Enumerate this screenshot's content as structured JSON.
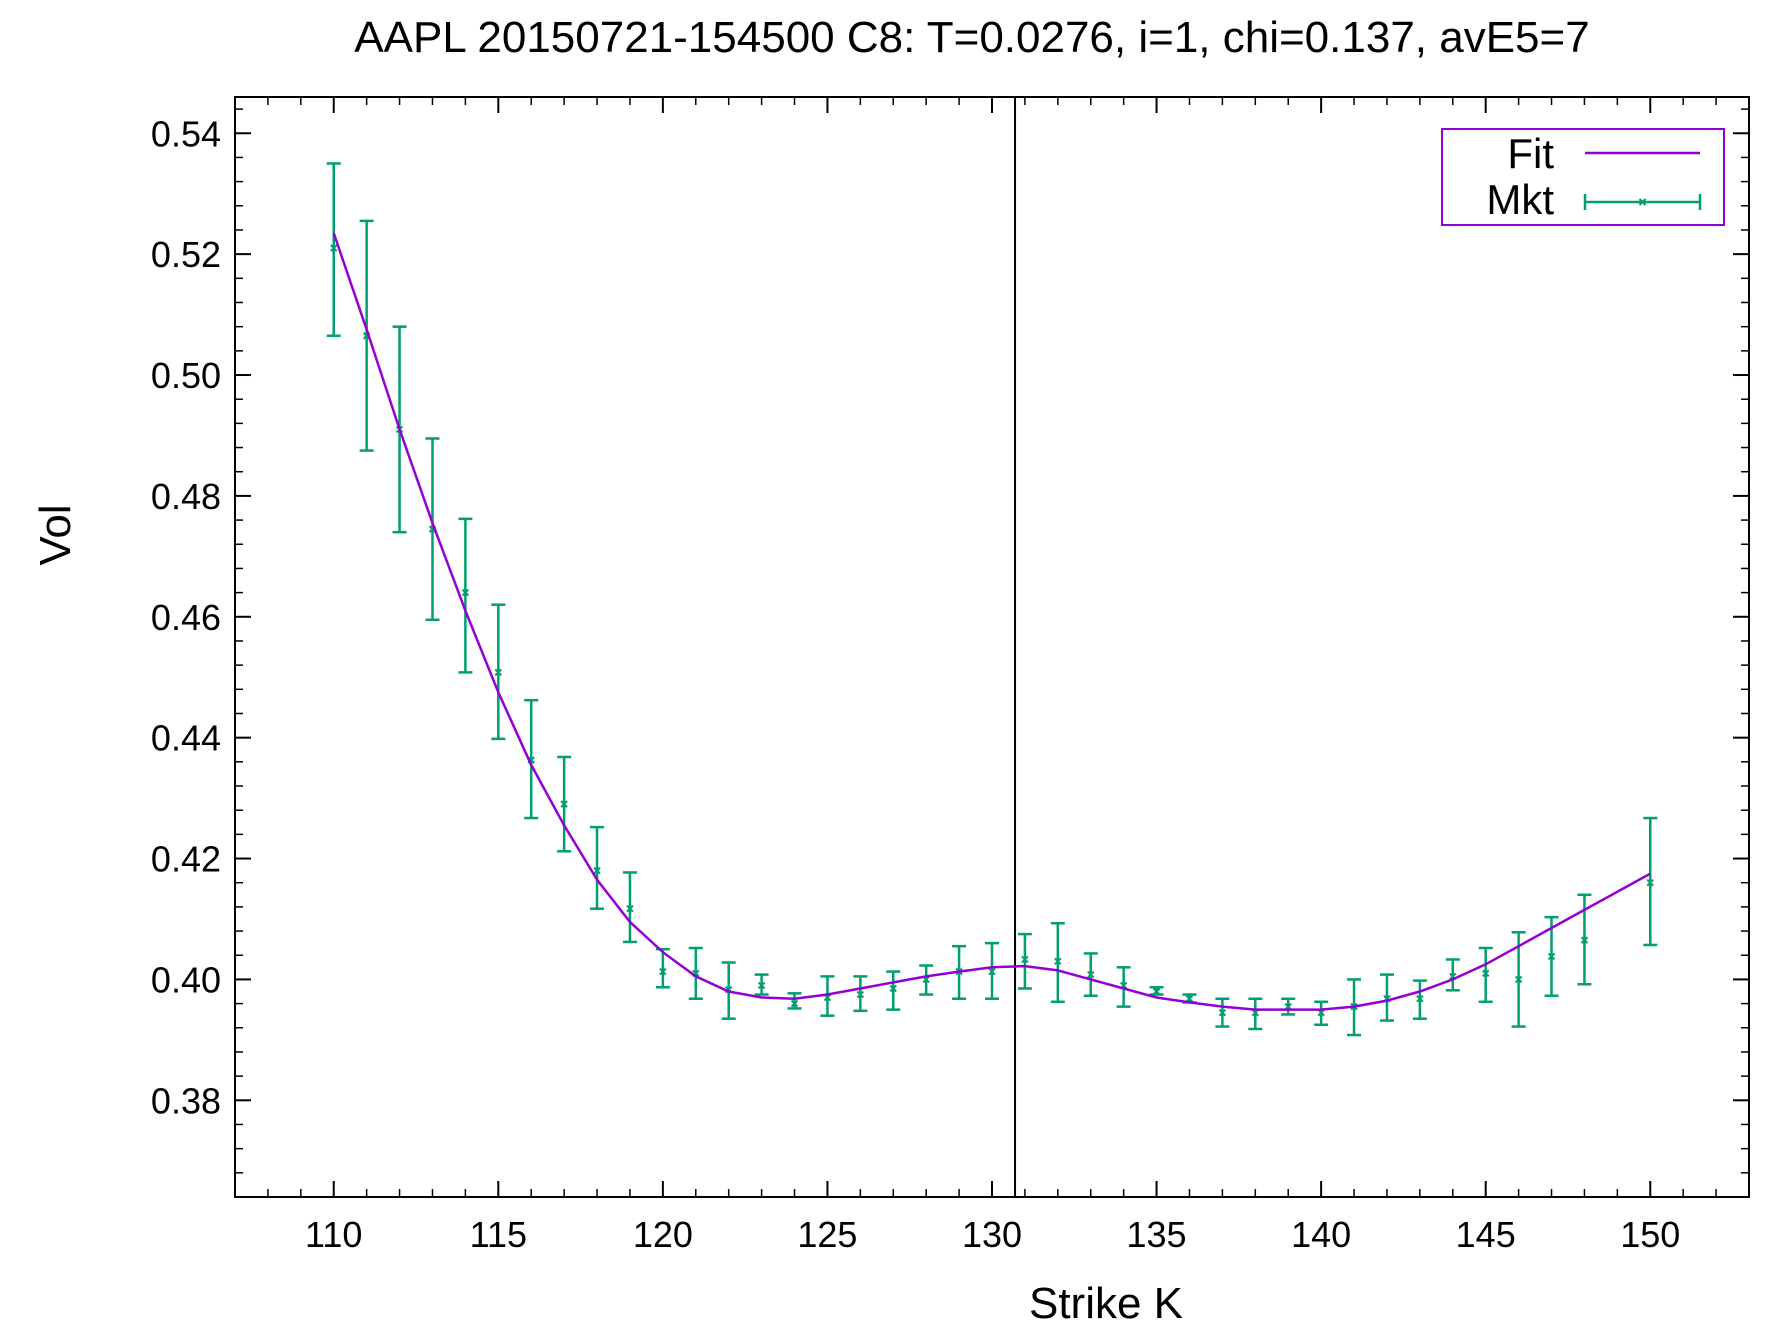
{
  "chart_data": {
    "type": "line",
    "title": "AAPL 20150721-154500  C8:  T=0.0276, i=1, chi=0.137, avE5=7",
    "xlabel": "Strike K",
    "ylabel": "Vol",
    "xlim": [
      107,
      153
    ],
    "ylim": [
      0.364,
      0.546
    ],
    "xticks": [
      110,
      115,
      120,
      125,
      130,
      135,
      140,
      145,
      150
    ],
    "xtick_labels": [
      "110",
      "115",
      "120",
      "125",
      "130",
      "135",
      "140",
      "145",
      "150"
    ],
    "yticks": [
      0.38,
      0.4,
      0.42,
      0.44,
      0.46,
      0.48,
      0.5,
      0.52,
      0.54
    ],
    "ytick_labels": [
      "0.38",
      "0.40",
      "0.42",
      "0.44",
      "0.46",
      "0.48",
      "0.50",
      "0.52",
      "0.54"
    ],
    "vertical_line_x": 130.7,
    "grid": false,
    "legend_position": "top-right",
    "colors": {
      "fit": "#9400D3",
      "mkt": "#009E73",
      "frame": "#000000"
    },
    "series": [
      {
        "name": "Fit",
        "kind": "line",
        "x": [
          110,
          111,
          112,
          113,
          114,
          115,
          116,
          117,
          118,
          119,
          120,
          121,
          122,
          123,
          124,
          125,
          126,
          127,
          128,
          129,
          130,
          131,
          132,
          133,
          134,
          135,
          136,
          137,
          138,
          139,
          140,
          141,
          142,
          143,
          144,
          145,
          146,
          147,
          148,
          149,
          150
        ],
        "y": [
          0.5235,
          0.5075,
          0.491,
          0.4755,
          0.461,
          0.4475,
          0.4355,
          0.4255,
          0.4165,
          0.4095,
          0.4045,
          0.4005,
          0.398,
          0.397,
          0.3968,
          0.3975,
          0.3985,
          0.3995,
          0.4005,
          0.4013,
          0.402,
          0.4022,
          0.4015,
          0.4,
          0.3985,
          0.397,
          0.3962,
          0.3955,
          0.395,
          0.395,
          0.395,
          0.3955,
          0.3965,
          0.398,
          0.4,
          0.4025,
          0.4055,
          0.4085,
          0.4115,
          0.4145,
          0.4175
        ]
      },
      {
        "name": "Mkt",
        "kind": "errorbar",
        "points": [
          {
            "x": 110,
            "y": 0.521,
            "lo": 0.5065,
            "hi": 0.535
          },
          {
            "x": 111,
            "y": 0.5065,
            "lo": 0.4875,
            "hi": 0.5255
          },
          {
            "x": 112,
            "y": 0.491,
            "lo": 0.474,
            "hi": 0.508
          },
          {
            "x": 113,
            "y": 0.4745,
            "lo": 0.4595,
            "hi": 0.4895
          },
          {
            "x": 114,
            "y": 0.464,
            "lo": 0.4508,
            "hi": 0.4762
          },
          {
            "x": 115,
            "y": 0.4508,
            "lo": 0.4398,
            "hi": 0.462
          },
          {
            "x": 116,
            "y": 0.4363,
            "lo": 0.4267,
            "hi": 0.4462
          },
          {
            "x": 117,
            "y": 0.429,
            "lo": 0.4212,
            "hi": 0.4368
          },
          {
            "x": 118,
            "y": 0.418,
            "lo": 0.4117,
            "hi": 0.4252
          },
          {
            "x": 119,
            "y": 0.4117,
            "lo": 0.4062,
            "hi": 0.4177
          },
          {
            "x": 120,
            "y": 0.4013,
            "lo": 0.3987,
            "hi": 0.405
          },
          {
            "x": 121,
            "y": 0.401,
            "lo": 0.3968,
            "hi": 0.4052
          },
          {
            "x": 122,
            "y": 0.3983,
            "lo": 0.3935,
            "hi": 0.4028
          },
          {
            "x": 123,
            "y": 0.399,
            "lo": 0.3975,
            "hi": 0.4008
          },
          {
            "x": 124,
            "y": 0.396,
            "lo": 0.3952,
            "hi": 0.3977
          },
          {
            "x": 125,
            "y": 0.397,
            "lo": 0.394,
            "hi": 0.4005
          },
          {
            "x": 126,
            "y": 0.3975,
            "lo": 0.3948,
            "hi": 0.4005
          },
          {
            "x": 127,
            "y": 0.3985,
            "lo": 0.395,
            "hi": 0.4013
          },
          {
            "x": 128,
            "y": 0.4,
            "lo": 0.3975,
            "hi": 0.4023
          },
          {
            "x": 129,
            "y": 0.4013,
            "lo": 0.3968,
            "hi": 0.4055
          },
          {
            "x": 130,
            "y": 0.4013,
            "lo": 0.3968,
            "hi": 0.406
          },
          {
            "x": 131,
            "y": 0.4033,
            "lo": 0.3985,
            "hi": 0.4075
          },
          {
            "x": 132,
            "y": 0.403,
            "lo": 0.3963,
            "hi": 0.4093
          },
          {
            "x": 133,
            "y": 0.4008,
            "lo": 0.3973,
            "hi": 0.4043
          },
          {
            "x": 134,
            "y": 0.399,
            "lo": 0.3955,
            "hi": 0.402
          },
          {
            "x": 135,
            "y": 0.398,
            "lo": 0.3975,
            "hi": 0.3987
          },
          {
            "x": 136,
            "y": 0.3968,
            "lo": 0.3962,
            "hi": 0.3975
          },
          {
            "x": 137,
            "y": 0.3945,
            "lo": 0.3922,
            "hi": 0.3968
          },
          {
            "x": 138,
            "y": 0.3945,
            "lo": 0.3918,
            "hi": 0.3968
          },
          {
            "x": 139,
            "y": 0.3955,
            "lo": 0.3942,
            "hi": 0.3968
          },
          {
            "x": 140,
            "y": 0.3945,
            "lo": 0.3925,
            "hi": 0.3963
          },
          {
            "x": 141,
            "y": 0.3955,
            "lo": 0.3908,
            "hi": 0.4
          },
          {
            "x": 142,
            "y": 0.3968,
            "lo": 0.3932,
            "hi": 0.4008
          },
          {
            "x": 143,
            "y": 0.3968,
            "lo": 0.3935,
            "hi": 0.3998
          },
          {
            "x": 144,
            "y": 0.4005,
            "lo": 0.3982,
            "hi": 0.4033
          },
          {
            "x": 145,
            "y": 0.401,
            "lo": 0.3963,
            "hi": 0.4052
          },
          {
            "x": 146,
            "y": 0.4,
            "lo": 0.3922,
            "hi": 0.4078
          },
          {
            "x": 147,
            "y": 0.4038,
            "lo": 0.3973,
            "hi": 0.4103
          },
          {
            "x": 148,
            "y": 0.4065,
            "lo": 0.3992,
            "hi": 0.414
          },
          {
            "x": 150,
            "y": 0.416,
            "lo": 0.4057,
            "hi": 0.4267
          }
        ]
      }
    ]
  }
}
